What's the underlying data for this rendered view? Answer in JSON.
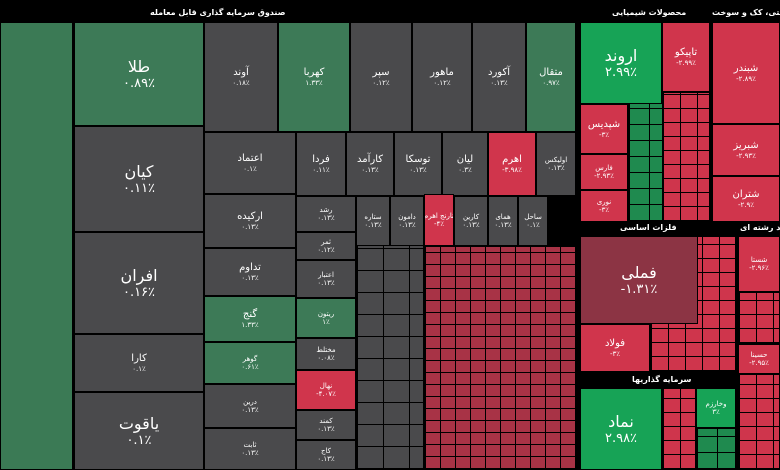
{
  "chart_data": {
    "type": "treemap",
    "sections": [
      "صندوق سرمایه گذاری قابل معامله",
      "محصولات شیمیایی",
      "نفتی، کک و سوخت",
      "فلزات اساسی",
      "سرمایه گذاریها",
      "چند رشته ای"
    ],
    "colors": {
      "up": "#17a356",
      "up_dim": "#3d7a57",
      "flat": "#4a4a4c",
      "down_dim": "#8c3444",
      "down": "#d0354c"
    },
    "tiles": [
      {
        "name": "طلا",
        "value": 0.89,
        "value_label": "۰.۸۹٪"
      },
      {
        "name": "کیان",
        "value": 0.11,
        "value_label": "۰.۱۱٪"
      },
      {
        "name": "افران",
        "value": 0.16,
        "value_label": "۰.۱۶٪"
      },
      {
        "name": "کارا",
        "value": 0.1,
        "value_label": "۰.۱٪"
      },
      {
        "name": "یاقوت",
        "value": 0.1,
        "value_label": "۰.۱٪"
      },
      {
        "name": "آوند",
        "value": 0.18,
        "value_label": "۰.۱۸٪"
      },
      {
        "name": "کهربا",
        "value": 1.33,
        "value_label": "۱.۳۳٪"
      },
      {
        "name": "سپر",
        "value": 0.12,
        "value_label": "۰.۱۲٪"
      },
      {
        "name": "ماهور",
        "value": 0.12,
        "value_label": "۰.۱۲٪"
      },
      {
        "name": "آکورد",
        "value": 0.13,
        "value_label": "۰.۱۳٪"
      },
      {
        "name": "متقال",
        "value": 0.97,
        "value_label": "۰.۹۷٪"
      },
      {
        "name": "اعتماد",
        "value": 0.1,
        "value_label": "۰.۱٪"
      },
      {
        "name": "فردا",
        "value": 0.11,
        "value_label": "۰.۱۱٪"
      },
      {
        "name": "کارآمد",
        "value": 0.13,
        "value_label": "۰.۱۳٪"
      },
      {
        "name": "توسکا",
        "value": 0.13,
        "value_label": "۰.۱۳٪"
      },
      {
        "name": "لیان",
        "value": 0.3,
        "value_label": "۰.۳٪"
      },
      {
        "name": "اهرم",
        "value": -3.98,
        "value_label": "-۳.۹۸٪"
      },
      {
        "name": "اولیکس",
        "value": 0.13,
        "value_label": "۰.۱۳٪"
      },
      {
        "name": "ارکیده",
        "value": 0.13,
        "value_label": "۰.۱۳٪"
      },
      {
        "name": "تداوم",
        "value": 0.13,
        "value_label": "۰.۱۳٪"
      },
      {
        "name": "گنج",
        "value": 1.33,
        "value_label": "۱.۳۳٪"
      },
      {
        "name": "گوهر",
        "value": 0.61,
        "value_label": "۰.۶۱٪"
      },
      {
        "name": "درین",
        "value": 0.13,
        "value_label": "۰.۱۳٪"
      },
      {
        "name": "ثابت",
        "value": 0.13,
        "value_label": "۰.۱۳٪"
      },
      {
        "name": "رشد",
        "value": 0.13,
        "value_label": "۰.۱۳٪"
      },
      {
        "name": "ثمر",
        "value": 0.12,
        "value_label": "۰.۱۲٪"
      },
      {
        "name": "اعتبار",
        "value": 0.13,
        "value_label": "۰.۱۳٪"
      },
      {
        "name": "ریتون",
        "value": 1,
        "value_label": "۱٪"
      },
      {
        "name": "مختلط",
        "value": 0.08,
        "value_label": "۰.۰۸٪"
      },
      {
        "name": "نهال",
        "value": -4.07,
        "value_label": "-۴.۰۷٪"
      },
      {
        "name": "کمند",
        "value": 0.13,
        "value_label": "۰.۱۳٪"
      },
      {
        "name": "کاج",
        "value": 0.13,
        "value_label": "۰.۱۳٪"
      },
      {
        "name": "ستاره",
        "value": 0.13,
        "value_label": "۰.۱۳٪"
      },
      {
        "name": "دامون",
        "value": 0.13,
        "value_label": "۰.۱۳٪"
      },
      {
        "name": "تارنج اهرم",
        "value": -4,
        "value_label": "-۴٪"
      },
      {
        "name": "کارین",
        "value": 0.13,
        "value_label": "۰.۱۳٪"
      },
      {
        "name": "همای",
        "value": 0.13,
        "value_label": "۰.۱۳٪"
      },
      {
        "name": "ساحل",
        "value": 0.1,
        "value_label": "۰.۱٪"
      },
      {
        "name": "اروند",
        "value": 2.99,
        "value_label": "۲.۹۹٪"
      },
      {
        "name": "تاپیکو",
        "value": -2.99,
        "value_label": "-۲.۹۹٪"
      },
      {
        "name": "شپدیس",
        "value": -3,
        "value_label": "-۳٪"
      },
      {
        "name": "فارس",
        "value": -2.93,
        "value_label": "-۲.۹۳٪"
      },
      {
        "name": "نوری",
        "value": -3,
        "value_label": "-۳٪"
      },
      {
        "name": "شبندر",
        "value": -2.89,
        "value_label": "-۲.۸۹٪"
      },
      {
        "name": "شبریز",
        "value": -2.93,
        "value_label": "-۲.۹۳٪"
      },
      {
        "name": "شتران",
        "value": -2.9,
        "value_label": "-۲.۹٪"
      },
      {
        "name": "فملی",
        "value": -1.31,
        "value_label": "-۱.۳۱٪"
      },
      {
        "name": "فولاد",
        "value": -3,
        "value_label": "-۳٪"
      },
      {
        "name": "نماد",
        "value": 2.98,
        "value_label": "۲.۹۸٪"
      },
      {
        "name": "وخارزم",
        "value": 3,
        "value_label": "۳٪"
      },
      {
        "name": "شستا",
        "value": -2.96,
        "value_label": "-۲.۹۶٪"
      },
      {
        "name": "حسینا",
        "value": -2.95,
        "value_label": "-۲.۹۵٪"
      }
    ]
  }
}
